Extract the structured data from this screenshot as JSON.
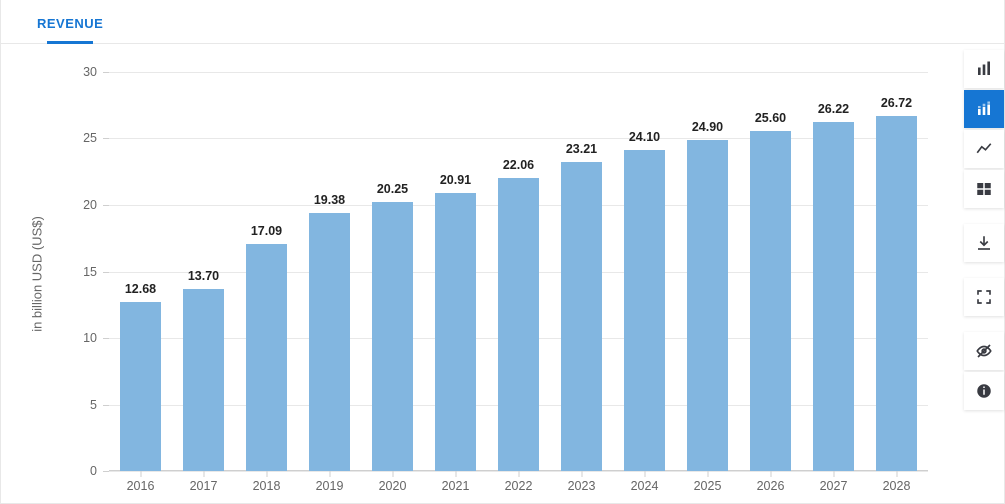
{
  "tab": {
    "label": "REVENUE"
  },
  "chart": {
    "type": "bar",
    "yaxis_title": "in billion USD (US$)",
    "yticks": [
      0,
      5,
      10,
      15,
      20,
      25,
      30
    ],
    "ylim": [
      0,
      30
    ],
    "categories": [
      "2016",
      "2017",
      "2018",
      "2019",
      "2020",
      "2021",
      "2022",
      "2023",
      "2024",
      "2025",
      "2026",
      "2027",
      "2028"
    ],
    "values": [
      12.68,
      13.7,
      17.09,
      19.38,
      20.25,
      20.91,
      22.06,
      23.21,
      24.1,
      24.9,
      25.6,
      26.22,
      26.72
    ],
    "value_labels": [
      "12.68",
      "13.70",
      "17.09",
      "19.38",
      "20.25",
      "20.91",
      "22.06",
      "23.21",
      "24.10",
      "24.90",
      "25.60",
      "26.22",
      "26.72"
    ],
    "bar_color": "#82b6e0",
    "label_color": "#222222",
    "label_fontsize": 12.5,
    "axis_font_color": "#666666",
    "axis_fontsize": 12.5,
    "grid_color": "#e8e8e8",
    "axis_line_color": "#cfcfcf",
    "background_color": "#ffffff",
    "bar_width_ratio": 0.66
  },
  "toolbar": {
    "accent": "#1676d3",
    "items": [
      {
        "name": "bar-chart-icon",
        "active": false
      },
      {
        "name": "stacked-bar-icon",
        "active": true
      },
      {
        "name": "line-chart-icon",
        "active": false
      },
      {
        "name": "table-icon",
        "active": false
      }
    ],
    "items2": [
      {
        "name": "download-icon"
      },
      {
        "name": "fullscreen-icon"
      },
      {
        "name": "hide-icon"
      },
      {
        "name": "info-icon"
      }
    ]
  }
}
